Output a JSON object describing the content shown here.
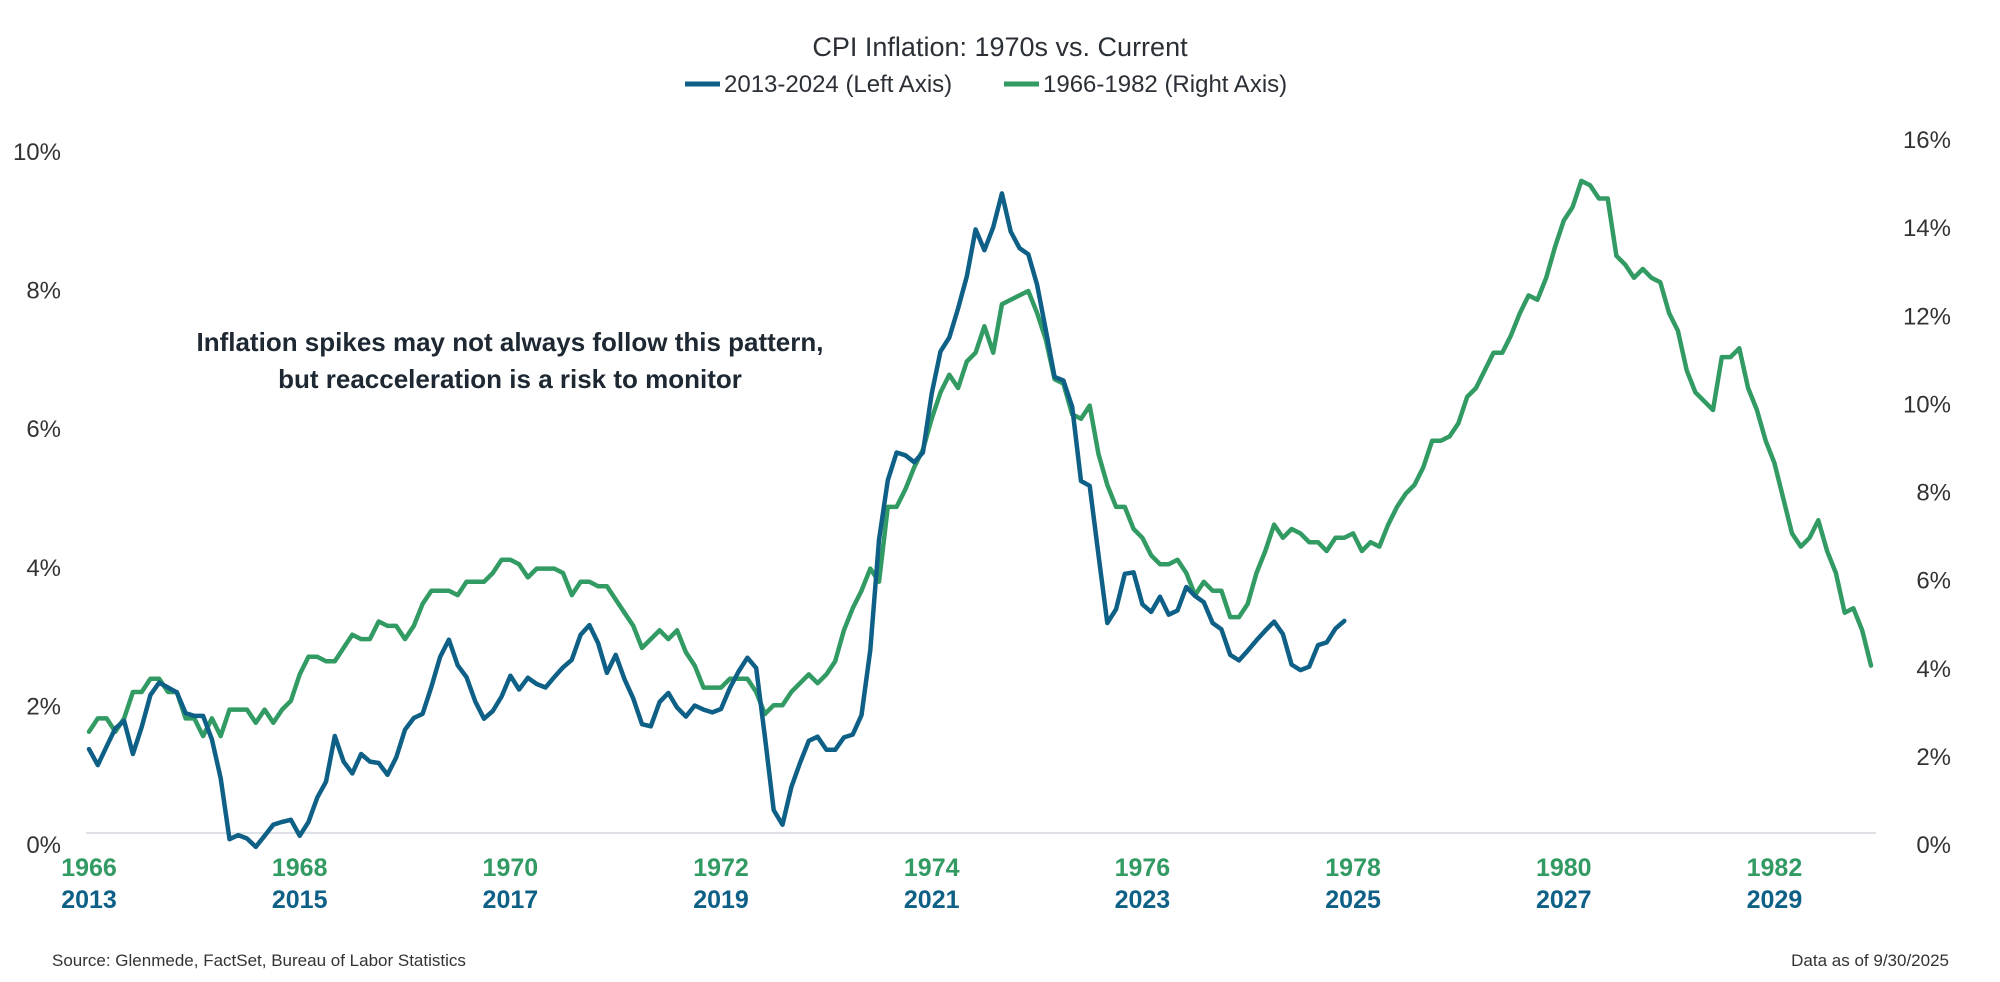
{
  "chart_data": {
    "type": "line",
    "title": "CPI Inflation: 1970s vs. Current",
    "colors": {
      "current": "#0e6086",
      "seventies": "#329a63",
      "baseline": "#dde1e6"
    },
    "legend": {
      "placement": "top-center"
    },
    "grid": false,
    "left_axis": {
      "ticks": [
        "0%",
        "2%",
        "4%",
        "6%",
        "8%",
        "10%"
      ],
      "values": [
        0,
        2,
        4,
        6,
        8,
        10
      ],
      "range": [
        0,
        10
      ]
    },
    "right_axis": {
      "ticks": [
        "0%",
        "2%",
        "4%",
        "6%",
        "8%",
        "10%",
        "12%",
        "14%",
        "16%"
      ],
      "values": [
        0,
        2,
        4,
        6,
        8,
        10,
        12,
        14,
        16
      ],
      "range": [
        0,
        16
      ]
    },
    "x_ticks_top": [
      "1966",
      "1968",
      "1970",
      "1972",
      "1974",
      "1976",
      "1978",
      "1980",
      "1982"
    ],
    "x_ticks_bottom": [
      "2013",
      "2015",
      "2017",
      "2019",
      "2021",
      "2023",
      "2025",
      "2027",
      "2029"
    ],
    "series": [
      {
        "name": "2013-2024 (Left Axis)",
        "axis": "left",
        "frequency": "monthly",
        "values": [
          1.21,
          0.98,
          1.25,
          1.51,
          1.62,
          1.14,
          1.53,
          1.99,
          2.17,
          2.1,
          2.03,
          1.73,
          1.69,
          1.69,
          1.35,
          0.79,
          -0.09,
          -0.03,
          -0.08,
          -0.2,
          -0.04,
          0.12,
          0.16,
          0.19,
          -0.04,
          0.16,
          0.51,
          0.74,
          1.4,
          1.03,
          0.86,
          1.14,
          1.03,
          1.01,
          0.84,
          1.09,
          1.49,
          1.66,
          1.72,
          2.11,
          2.54,
          2.79,
          2.42,
          2.25,
          1.9,
          1.65,
          1.76,
          1.97,
          2.27,
          2.07,
          2.24,
          2.15,
          2.1,
          2.25,
          2.39,
          2.5,
          2.86,
          3.0,
          2.74,
          2.31,
          2.57,
          2.22,
          1.94,
          1.57,
          1.54,
          1.89,
          2.02,
          1.81,
          1.68,
          1.84,
          1.78,
          1.74,
          1.79,
          2.09,
          2.33,
          2.53,
          2.38,
          1.39,
          0.33,
          0.12,
          0.66,
          1.01,
          1.33,
          1.39,
          1.2,
          1.2,
          1.38,
          1.42,
          1.7,
          2.64,
          4.23,
          5.09,
          5.49,
          5.45,
          5.35,
          5.49,
          6.34,
          6.95,
          7.15,
          7.57,
          8.03,
          8.71,
          8.41,
          8.74,
          9.23,
          8.68,
          8.44,
          8.35,
          7.91,
          7.26,
          6.58,
          6.53,
          6.15,
          5.08,
          5.01,
          4.01,
          3.03,
          3.23,
          3.74,
          3.76,
          3.3,
          3.19,
          3.41,
          3.15,
          3.21,
          3.55,
          3.42,
          3.33,
          3.03,
          2.94,
          2.57,
          2.49,
          2.63,
          2.78,
          2.92,
          3.05,
          2.87,
          2.43,
          2.35,
          2.4,
          2.71,
          2.75,
          2.95,
          3.06
        ]
      },
      {
        "name": "1966-1982 (Right Axis)",
        "axis": "right",
        "frequency": "monthly",
        "values": [
          2.3,
          2.6,
          2.6,
          2.3,
          2.6,
          3.2,
          3.2,
          3.5,
          3.5,
          3.2,
          3.2,
          2.6,
          2.6,
          2.2,
          2.6,
          2.2,
          2.8,
          2.8,
          2.8,
          2.5,
          2.8,
          2.5,
          2.8,
          3.0,
          3.6,
          4.0,
          4.0,
          3.9,
          3.9,
          4.2,
          4.5,
          4.4,
          4.4,
          4.8,
          4.7,
          4.7,
          4.4,
          4.7,
          5.2,
          5.5,
          5.5,
          5.5,
          5.4,
          5.7,
          5.7,
          5.7,
          5.9,
          6.2,
          6.2,
          6.1,
          5.8,
          6.0,
          6.0,
          6.0,
          5.9,
          5.4,
          5.7,
          5.7,
          5.6,
          5.6,
          5.3,
          5.0,
          4.7,
          4.2,
          4.4,
          4.6,
          4.4,
          4.6,
          4.1,
          3.8,
          3.3,
          3.3,
          3.3,
          3.5,
          3.5,
          3.5,
          3.2,
          2.7,
          2.9,
          2.9,
          3.2,
          3.4,
          3.6,
          3.4,
          3.6,
          3.9,
          4.6,
          5.1,
          5.5,
          6.0,
          5.7,
          7.4,
          7.4,
          7.8,
          8.3,
          8.7,
          9.4,
          10.0,
          10.4,
          10.1,
          10.7,
          10.9,
          11.5,
          10.9,
          12.0,
          12.1,
          12.2,
          12.3,
          11.8,
          11.2,
          10.3,
          10.2,
          9.5,
          9.4,
          9.7,
          8.6,
          7.9,
          7.4,
          7.4,
          6.9,
          6.7,
          6.3,
          6.1,
          6.1,
          6.2,
          5.9,
          5.4,
          5.7,
          5.5,
          5.5,
          4.9,
          4.9,
          5.2,
          5.9,
          6.4,
          7.0,
          6.7,
          6.9,
          6.8,
          6.6,
          6.6,
          6.4,
          6.7,
          6.7,
          6.8,
          6.4,
          6.6,
          6.5,
          7.0,
          7.4,
          7.7,
          7.9,
          8.3,
          8.9,
          8.9,
          9.0,
          9.3,
          9.9,
          10.1,
          10.5,
          10.9,
          10.9,
          11.3,
          11.8,
          12.2,
          12.1,
          12.6,
          13.3,
          13.9,
          14.2,
          14.8,
          14.7,
          14.4,
          14.4,
          13.1,
          12.9,
          12.6,
          12.8,
          12.6,
          12.5,
          11.8,
          11.4,
          10.5,
          10.0,
          9.8,
          9.6,
          10.8,
          10.8,
          11.0,
          10.1,
          9.6,
          8.9,
          8.4,
          7.6,
          6.8,
          6.5,
          6.7,
          7.1,
          6.4,
          5.9,
          5.0,
          5.1,
          4.6,
          3.8
        ]
      }
    ],
    "annotation": [
      "Inflation spikes may not always follow this pattern,",
      "but reacceleration is a risk to monitor"
    ]
  },
  "footer": {
    "source": "Source: Glenmede, FactSet, Bureau of Labor Statistics",
    "as_of": "Data as of 9/30/2025"
  }
}
